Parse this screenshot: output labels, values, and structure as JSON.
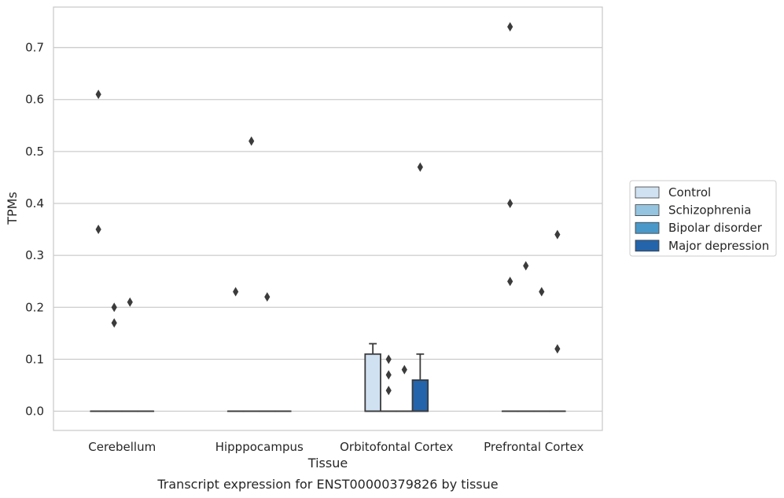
{
  "chart_data": {
    "type": "box",
    "title": "",
    "caption": "Transcript expression for ENST00000379826 by tissue",
    "xlabel": "Tissue",
    "ylabel": "TPMs",
    "categories": [
      "Cerebellum",
      "Hipppocampus",
      "Orbitofontal Cortex",
      "Prefrontal Cortex"
    ],
    "ylim": [
      -0.037,
      0.778
    ],
    "yticks": [
      0.0,
      0.1,
      0.2,
      0.3,
      0.4,
      0.5,
      0.6,
      0.7
    ],
    "ytick_labels": [
      "0.0",
      "0.1",
      "0.2",
      "0.3",
      "0.4",
      "0.5",
      "0.6",
      "0.7"
    ],
    "grid": "horizontal",
    "legend": {
      "placement": "right",
      "entries": [
        "Control",
        "Schizophrenia",
        "Bipolar disorder",
        "Major depression"
      ]
    },
    "colors": {
      "Control": "#d0e1f2",
      "Schizophrenia": "#94c4df",
      "Bipolar disorder": "#4a98c9",
      "Major depression": "#2464ab"
    },
    "series": [
      {
        "name": "Control",
        "boxes": [
          {
            "category": "Cerebellum",
            "q1": 0,
            "median": 0,
            "q3": 0,
            "whisker_low": 0,
            "whisker_high": 0,
            "outliers": [
              0.35,
              0.61
            ]
          },
          {
            "category": "Hipppocampus",
            "q1": 0,
            "median": 0,
            "q3": 0,
            "whisker_low": 0,
            "whisker_high": 0,
            "outliers": [
              0.23
            ]
          },
          {
            "category": "Orbitofontal Cortex",
            "q1": 0,
            "median": 0,
            "q3": 0.11,
            "whisker_low": 0,
            "whisker_high": 0.13,
            "outliers": []
          },
          {
            "category": "Prefrontal Cortex",
            "q1": 0,
            "median": 0,
            "q3": 0,
            "whisker_low": 0,
            "whisker_high": 0,
            "outliers": [
              0.25,
              0.4,
              0.74
            ]
          }
        ]
      },
      {
        "name": "Schizophrenia",
        "boxes": [
          {
            "category": "Cerebellum",
            "q1": 0,
            "median": 0,
            "q3": 0,
            "whisker_low": 0,
            "whisker_high": 0,
            "outliers": [
              0.17,
              0.2
            ]
          },
          {
            "category": "Hipppocampus",
            "q1": 0,
            "median": 0,
            "q3": 0,
            "whisker_low": 0,
            "whisker_high": 0,
            "outliers": [
              0.52
            ]
          },
          {
            "category": "Orbitofontal Cortex",
            "q1": 0,
            "median": 0,
            "q3": 0,
            "whisker_low": 0,
            "whisker_high": 0,
            "outliers": [
              0.04,
              0.07,
              0.1
            ]
          },
          {
            "category": "Prefrontal Cortex",
            "q1": 0,
            "median": 0,
            "q3": 0,
            "whisker_low": 0,
            "whisker_high": 0,
            "outliers": [
              0.28
            ]
          }
        ]
      },
      {
        "name": "Bipolar disorder",
        "boxes": [
          {
            "category": "Cerebellum",
            "q1": 0,
            "median": 0,
            "q3": 0,
            "whisker_low": 0,
            "whisker_high": 0,
            "outliers": [
              0.21
            ]
          },
          {
            "category": "Hipppocampus",
            "q1": 0,
            "median": 0,
            "q3": 0,
            "whisker_low": 0,
            "whisker_high": 0,
            "outliers": [
              0.22
            ]
          },
          {
            "category": "Orbitofontal Cortex",
            "q1": 0,
            "median": 0,
            "q3": 0,
            "whisker_low": 0,
            "whisker_high": 0,
            "outliers": [
              0.08
            ]
          },
          {
            "category": "Prefrontal Cortex",
            "q1": 0,
            "median": 0,
            "q3": 0,
            "whisker_low": 0,
            "whisker_high": 0,
            "outliers": [
              0.23
            ]
          }
        ]
      },
      {
        "name": "Major depression",
        "boxes": [
          {
            "category": "Cerebellum",
            "q1": 0,
            "median": 0,
            "q3": 0,
            "whisker_low": 0,
            "whisker_high": 0,
            "outliers": []
          },
          {
            "category": "Hipppocampus",
            "q1": 0,
            "median": 0,
            "q3": 0,
            "whisker_low": 0,
            "whisker_high": 0,
            "outliers": []
          },
          {
            "category": "Orbitofontal Cortex",
            "q1": 0,
            "median": 0,
            "q3": 0.06,
            "whisker_low": 0,
            "whisker_high": 0.11,
            "outliers": [
              0.47
            ]
          },
          {
            "category": "Prefrontal Cortex",
            "q1": 0,
            "median": 0,
            "q3": 0,
            "whisker_low": 0,
            "whisker_high": 0,
            "outliers": [
              0.12,
              0.34
            ]
          }
        ]
      }
    ]
  }
}
